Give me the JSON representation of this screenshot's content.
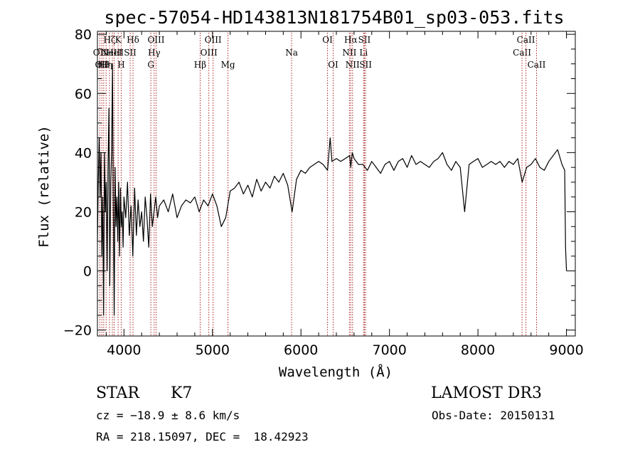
{
  "chart_data": {
    "type": "line",
    "title": "spec-57054-HD143813N181754B01_sp03-053.fits",
    "xlabel": "Wavelength (Å)",
    "ylabel": "Flux (relative)",
    "xlim": [
      3700,
      9100
    ],
    "ylim": [
      -22,
      81
    ],
    "xticks": [
      4000,
      5000,
      6000,
      7000,
      8000,
      9000
    ],
    "yticks": [
      -20,
      0,
      20,
      40,
      60,
      80
    ],
    "xtick_labels": [
      "4000",
      "5000",
      "6000",
      "7000",
      "8000",
      "9000"
    ],
    "ytick_labels": [
      "−20",
      "0",
      "20",
      "40",
      "60",
      "80"
    ],
    "grid": false,
    "line_color": "#000000",
    "marker_line_color": "#aa2222",
    "series": [
      {
        "x": [
          3700,
          3710,
          3720,
          3730,
          3740,
          3750,
          3760,
          3770,
          3780,
          3790,
          3800,
          3810,
          3820,
          3830,
          3840,
          3850,
          3860,
          3870,
          3880,
          3890,
          3900,
          3910,
          3920,
          3930,
          3940,
          3950,
          3960,
          3970,
          3980,
          3990,
          4000,
          4020,
          4040,
          4060,
          4080,
          4100,
          4120,
          4140,
          4160,
          4180,
          4200,
          4220,
          4240,
          4260,
          4280,
          4300,
          4320,
          4340,
          4360,
          4380,
          4400,
          4450,
          4500,
          4550,
          4600,
          4650,
          4700,
          4750,
          4800,
          4850,
          4900,
          4950,
          5000,
          5050,
          5100,
          5150,
          5200,
          5250,
          5300,
          5350,
          5400,
          5450,
          5500,
          5550,
          5600,
          5650,
          5700,
          5750,
          5800,
          5850,
          5900,
          5950,
          6000,
          6050,
          6100,
          6150,
          6200,
          6250,
          6300,
          6330,
          6350,
          6400,
          6450,
          6500,
          6550,
          6563,
          6580,
          6600,
          6650,
          6700,
          6750,
          6800,
          6850,
          6900,
          6950,
          7000,
          7050,
          7100,
          7150,
          7200,
          7250,
          7300,
          7350,
          7400,
          7450,
          7500,
          7550,
          7600,
          7650,
          7700,
          7750,
          7800,
          7850,
          7900,
          7950,
          8000,
          8050,
          8100,
          8150,
          8200,
          8250,
          8300,
          8350,
          8400,
          8450,
          8500,
          8550,
          8600,
          8650,
          8700,
          8750,
          8800,
          8850,
          8900,
          8950,
          8980,
          8990,
          9000
        ],
        "y": [
          10,
          30,
          45,
          25,
          40,
          5,
          25,
          -15,
          40,
          20,
          30,
          0,
          35,
          55,
          -5,
          30,
          40,
          70,
          20,
          -15,
          35,
          15,
          25,
          10,
          30,
          5,
          28,
          15,
          20,
          8,
          25,
          18,
          30,
          12,
          22,
          5,
          28,
          12,
          24,
          15,
          20,
          10,
          25,
          18,
          8,
          26,
          15,
          20,
          25,
          18,
          22,
          24,
          20,
          26,
          18,
          22,
          24,
          23,
          25,
          20,
          24,
          22,
          26,
          22,
          15,
          18,
          27,
          28,
          30,
          26,
          29,
          25,
          31,
          27,
          30,
          28,
          32,
          30,
          33,
          29,
          20,
          31,
          34,
          33,
          35,
          36,
          37,
          36,
          34,
          45,
          37,
          38,
          37,
          38,
          39,
          35,
          40,
          38,
          36,
          36,
          34,
          37,
          35,
          33,
          36,
          37,
          34,
          37,
          38,
          35,
          39,
          36,
          37,
          36,
          35,
          37,
          38,
          40,
          36,
          34,
          37,
          35,
          20,
          36,
          37,
          38,
          35,
          36,
          37,
          36,
          37,
          35,
          37,
          36,
          38,
          30,
          35,
          36,
          38,
          35,
          34,
          37,
          39,
          41,
          36,
          34,
          8,
          0
        ]
      }
    ],
    "line_markers": [
      {
        "w": 3727,
        "label": "OII",
        "row": 1
      },
      {
        "w": 3750,
        "label": "OII",
        "row": 2
      },
      {
        "w": 3771,
        "label": "Hθ",
        "row": 2
      },
      {
        "w": 3798,
        "label": "Hη",
        "row": 2
      },
      {
        "w": 3836,
        "label": "Hζ",
        "row": 0
      },
      {
        "w": 3869,
        "label": "NeIII",
        "row": 1
      },
      {
        "w": 3889,
        "label": "HeI",
        "row": 1
      },
      {
        "w": 3934,
        "label": "K",
        "row": 0
      },
      {
        "w": 3969,
        "label": "H",
        "row": 2
      },
      {
        "w": 4070,
        "label": "SII",
        "row": 1
      },
      {
        "w": 4102,
        "label": "Hδ",
        "row": 0
      },
      {
        "w": 4304,
        "label": "G",
        "row": 2
      },
      {
        "w": 4341,
        "label": "Hγ",
        "row": 1
      },
      {
        "w": 4363,
        "label": "OIII",
        "row": 0
      },
      {
        "w": 4861,
        "label": "Hβ",
        "row": 2
      },
      {
        "w": 4959,
        "label": "OIII",
        "row": 1
      },
      {
        "w": 5007,
        "label": "OIII",
        "row": 0
      },
      {
        "w": 5175,
        "label": "Mg",
        "row": 2
      },
      {
        "w": 5894,
        "label": "Na",
        "row": 1
      },
      {
        "w": 6300,
        "label": "OI",
        "row": 0
      },
      {
        "w": 6364,
        "label": "OI",
        "row": 2
      },
      {
        "w": 6548,
        "label": "NII",
        "row": 1
      },
      {
        "w": 6563,
        "label": "Hα",
        "row": 0
      },
      {
        "w": 6583,
        "label": "NII",
        "row": 2
      },
      {
        "w": 6708,
        "label": "Li",
        "row": 1
      },
      {
        "w": 6717,
        "label": "SII",
        "row": 0
      },
      {
        "w": 6731,
        "label": "SII",
        "row": 2
      },
      {
        "w": 8498,
        "label": "CaII",
        "row": 1
      },
      {
        "w": 8542,
        "label": "CaII",
        "row": 0
      },
      {
        "w": 8662,
        "label": "CaII",
        "row": 2
      }
    ]
  },
  "info": {
    "object_class": "STAR",
    "subclass": "K7",
    "survey": "LAMOST DR3",
    "cz": "cz = −18.9 ± 8.6 km/s",
    "obs_date": "Obs-Date: 20150131",
    "coords": "RA = 218.15097, DEC =  18.42923"
  }
}
